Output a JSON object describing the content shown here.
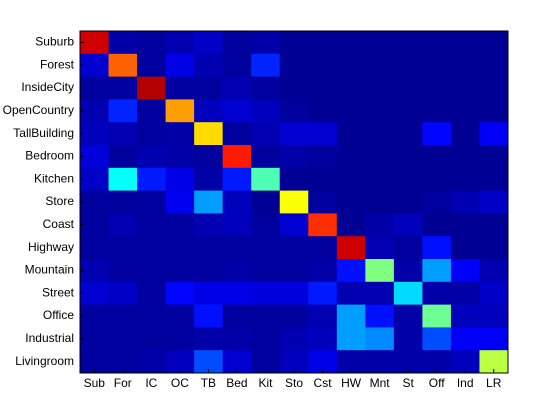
{
  "chart_data": {
    "type": "heatmap",
    "colormap": "jet",
    "clim": [
      0,
      1
    ],
    "x_categories": [
      "Sub",
      "For",
      "IC",
      "OC",
      "TB",
      "Bed",
      "Kit",
      "Sto",
      "Cst",
      "HW",
      "Mnt",
      "St",
      "Off",
      "Ind",
      "LR"
    ],
    "y_categories": [
      "Suburb",
      "Forest",
      "InsideCity",
      "OpenCountry",
      "TallBuilding",
      "Bedroom",
      "Kitchen",
      "Store",
      "Coast",
      "Highway",
      "Mountain",
      "Street",
      "Office",
      "Industrial",
      "Livingroom"
    ],
    "values": [
      [
        0.92,
        0.04,
        0.03,
        0.05,
        0.07,
        0.03,
        0.04,
        0.02,
        0.02,
        0.02,
        0.02,
        0.02,
        0.02,
        0.02,
        0.02
      ],
      [
        0.08,
        0.78,
        0.03,
        0.1,
        0.05,
        0.03,
        0.16,
        0.02,
        0.02,
        0.02,
        0.02,
        0.02,
        0.02,
        0.02,
        0.02
      ],
      [
        0.03,
        0.03,
        0.95,
        0.03,
        0.03,
        0.05,
        0.03,
        0.02,
        0.02,
        0.02,
        0.02,
        0.02,
        0.02,
        0.02,
        0.02
      ],
      [
        0.05,
        0.16,
        0.03,
        0.72,
        0.06,
        0.08,
        0.06,
        0.03,
        0.02,
        0.02,
        0.02,
        0.02,
        0.02,
        0.02,
        0.02
      ],
      [
        0.06,
        0.05,
        0.03,
        0.04,
        0.66,
        0.03,
        0.05,
        0.08,
        0.08,
        0.02,
        0.02,
        0.02,
        0.13,
        0.02,
        0.12
      ],
      [
        0.09,
        0.03,
        0.05,
        0.04,
        0.03,
        0.85,
        0.03,
        0.04,
        0.03,
        0.02,
        0.02,
        0.02,
        0.02,
        0.02,
        0.02
      ],
      [
        0.07,
        0.38,
        0.15,
        0.1,
        0.04,
        0.15,
        0.45,
        0.02,
        0.02,
        0.02,
        0.02,
        0.02,
        0.02,
        0.02,
        0.02
      ],
      [
        0.03,
        0.03,
        0.03,
        0.11,
        0.28,
        0.06,
        0.02,
        0.62,
        0.03,
        0.02,
        0.02,
        0.02,
        0.03,
        0.05,
        0.07
      ],
      [
        0.03,
        0.05,
        0.03,
        0.03,
        0.05,
        0.06,
        0.03,
        0.08,
        0.83,
        0.02,
        0.04,
        0.06,
        0.02,
        0.02,
        0.02
      ],
      [
        0.03,
        0.03,
        0.03,
        0.03,
        0.03,
        0.03,
        0.03,
        0.03,
        0.03,
        0.92,
        0.05,
        0.03,
        0.14,
        0.02,
        0.02
      ],
      [
        0.05,
        0.03,
        0.03,
        0.03,
        0.03,
        0.04,
        0.03,
        0.03,
        0.04,
        0.14,
        0.5,
        0.04,
        0.28,
        0.12,
        0.05
      ],
      [
        0.08,
        0.07,
        0.03,
        0.13,
        0.1,
        0.1,
        0.09,
        0.09,
        0.15,
        0.05,
        0.05,
        0.34,
        0.04,
        0.04,
        0.07
      ],
      [
        0.03,
        0.03,
        0.03,
        0.03,
        0.14,
        0.03,
        0.03,
        0.03,
        0.05,
        0.28,
        0.14,
        0.04,
        0.48,
        0.06,
        0.06
      ],
      [
        0.03,
        0.03,
        0.03,
        0.03,
        0.04,
        0.04,
        0.03,
        0.05,
        0.06,
        0.28,
        0.26,
        0.04,
        0.2,
        0.12,
        0.12
      ],
      [
        0.03,
        0.03,
        0.04,
        0.06,
        0.2,
        0.08,
        0.03,
        0.06,
        0.1,
        0.04,
        0.04,
        0.04,
        0.04,
        0.06,
        0.56
      ]
    ]
  }
}
